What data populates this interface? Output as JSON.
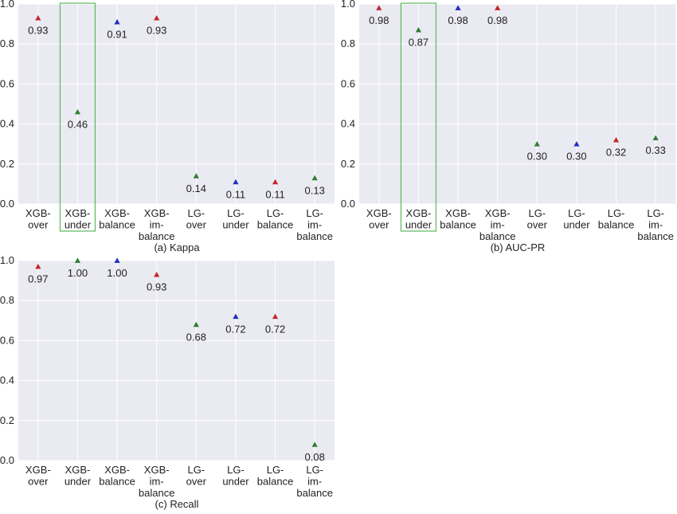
{
  "chart_data": [
    {
      "type": "scatter",
      "caption": "(a) Kappa",
      "categories": [
        [
          "XGB-",
          "over"
        ],
        [
          "XGB-",
          "under"
        ],
        [
          "XGB-",
          "balance"
        ],
        [
          "XGB-",
          "im-",
          "balance"
        ],
        [
          "LG-",
          "over"
        ],
        [
          "LG-",
          "under"
        ],
        [
          "LG-",
          "balance"
        ],
        [
          "LG-",
          "im-",
          "balance"
        ]
      ],
      "values": [
        0.93,
        0.46,
        0.91,
        0.93,
        0.14,
        0.11,
        0.11,
        0.13
      ],
      "labels": [
        "0.93",
        "0.46",
        "0.91",
        "0.93",
        "0.14",
        "0.11",
        "0.11",
        "0.13"
      ],
      "marker_colors": [
        "#c0282c",
        "#2e7d32",
        "#1f2fbf",
        "#c0282c",
        "#2e7d32",
        "#1f2fbf",
        "#c0282c",
        "#2e7d32"
      ],
      "yticks": [
        "0.0",
        "0.2",
        "0.4",
        "0.6",
        "0.8",
        "1.0"
      ],
      "ylim": [
        0,
        1.0
      ],
      "highlight_index": 1,
      "highlight_color": "#5cb85c",
      "grid": true
    },
    {
      "type": "scatter",
      "caption": "(b) AUC-PR",
      "categories": [
        [
          "XGB-",
          "over"
        ],
        [
          "XGB-",
          "under"
        ],
        [
          "XGB-",
          "balance"
        ],
        [
          "XGB-",
          "im-",
          "balance"
        ],
        [
          "LG-",
          "over"
        ],
        [
          "LG-",
          "under"
        ],
        [
          "LG-",
          "balance"
        ],
        [
          "LG-",
          "im-",
          "balance"
        ]
      ],
      "values": [
        0.98,
        0.87,
        0.98,
        0.98,
        0.3,
        0.3,
        0.32,
        0.33
      ],
      "labels": [
        "0.98",
        "0.87",
        "0.98",
        "0.98",
        "0.30",
        "0.30",
        "0.32",
        "0.33"
      ],
      "marker_colors": [
        "#c0282c",
        "#2e7d32",
        "#1f2fbf",
        "#c0282c",
        "#2e7d32",
        "#1f2fbf",
        "#c0282c",
        "#2e7d32"
      ],
      "yticks": [
        "0.0",
        "0.2",
        "0.4",
        "0.6",
        "0.8",
        "1.0"
      ],
      "ylim": [
        0,
        1.0
      ],
      "highlight_index": 1,
      "highlight_color": "#5cb85c",
      "grid": true
    },
    {
      "type": "scatter",
      "caption": "(c) Recall",
      "categories": [
        [
          "XGB-",
          "over"
        ],
        [
          "XGB-",
          "under"
        ],
        [
          "XGB-",
          "balance"
        ],
        [
          "XGB-",
          "im-",
          "balance"
        ],
        [
          "LG-",
          "over"
        ],
        [
          "LG-",
          "under"
        ],
        [
          "LG-",
          "balance"
        ],
        [
          "LG-",
          "im-",
          "balance"
        ]
      ],
      "values": [
        0.97,
        1.0,
        1.0,
        0.93,
        0.68,
        0.72,
        0.72,
        0.08
      ],
      "labels": [
        "0.97",
        "1.00",
        "1.00",
        "0.93",
        "0.68",
        "0.72",
        "0.72",
        "0.08"
      ],
      "marker_colors": [
        "#c0282c",
        "#2e7d32",
        "#1f2fbf",
        "#c0282c",
        "#2e7d32",
        "#1f2fbf",
        "#c0282c",
        "#2e7d32"
      ],
      "yticks": [
        "0.0",
        "0.2",
        "0.4",
        "0.6",
        "0.8",
        "1.0"
      ],
      "ylim": [
        0,
        1.0
      ],
      "highlight_index": null,
      "grid": true
    }
  ]
}
